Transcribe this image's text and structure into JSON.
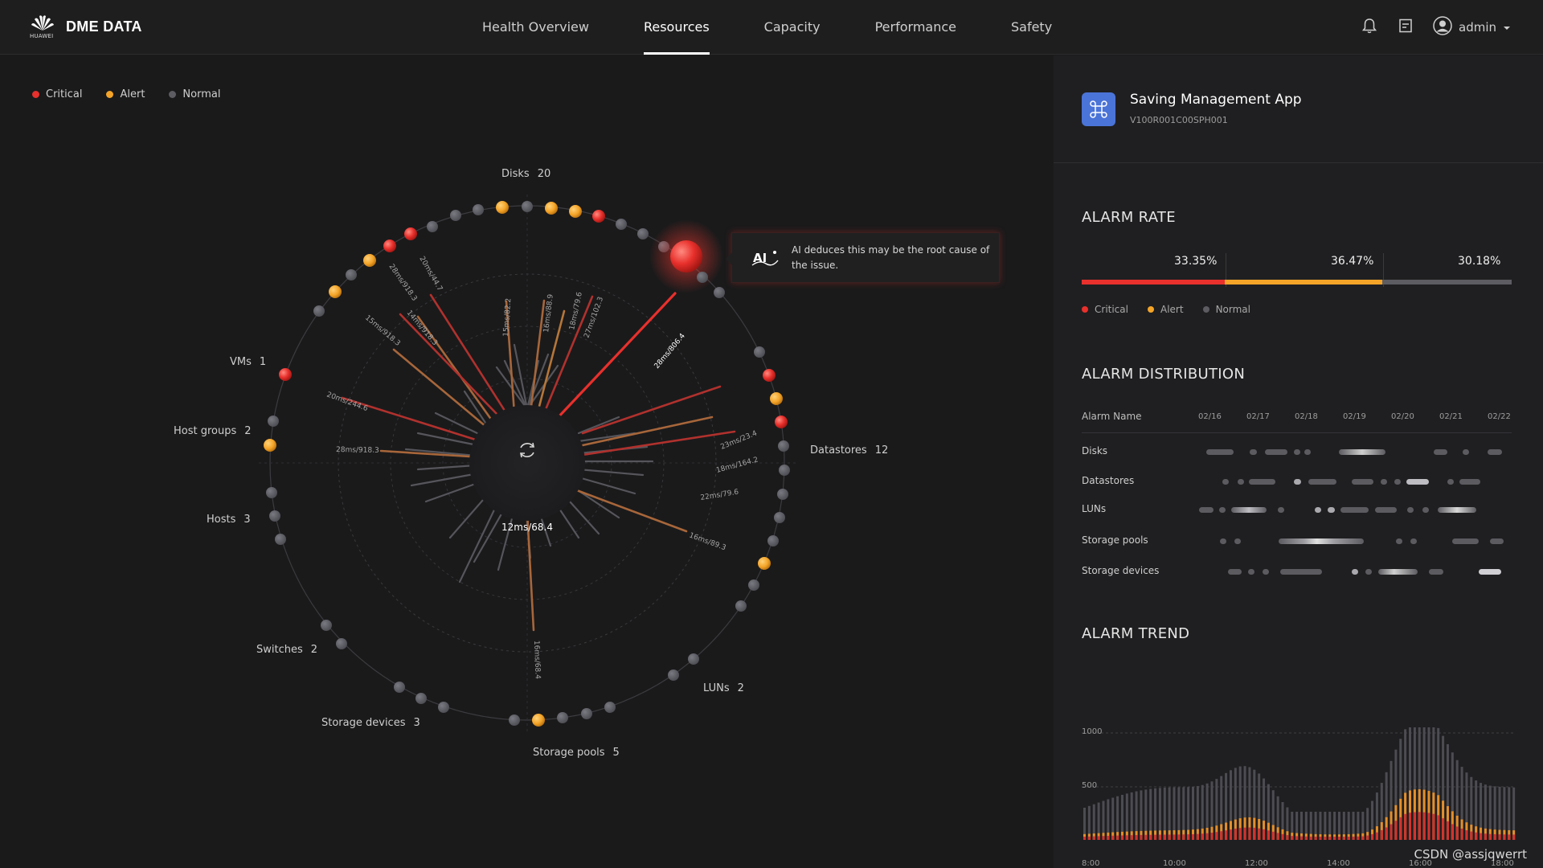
{
  "app": {
    "brand": "DME DATA",
    "logo_sub": "HUAWEI"
  },
  "nav": {
    "tabs": [
      {
        "label": "Health Overview",
        "active": false
      },
      {
        "label": "Resources",
        "active": true
      },
      {
        "label": "Capacity",
        "active": false
      },
      {
        "label": "Performance",
        "active": false
      },
      {
        "label": "Safety",
        "active": false
      }
    ]
  },
  "header": {
    "user": "admin",
    "icons": [
      "bell-icon",
      "document-icon",
      "user-avatar-icon",
      "caret-down-icon"
    ]
  },
  "legend": {
    "critical": "Critical",
    "alert": "Alert",
    "normal": "Normal"
  },
  "colors": {
    "critical": "#e8302c",
    "alert": "#f4a428",
    "normal": "#5c5c62",
    "accent": "#4b74d8"
  },
  "radial": {
    "center_value": "12ms/68.4",
    "categories": [
      {
        "name": "Disks",
        "count": "20"
      },
      {
        "name": "Datastores",
        "count": "12"
      },
      {
        "name": "LUNs",
        "count": "2"
      },
      {
        "name": "Storage pools",
        "count": "5"
      },
      {
        "name": "Storage devices",
        "count": "3"
      },
      {
        "name": "Switches",
        "count": "2"
      },
      {
        "name": "Hosts",
        "count": "3"
      },
      {
        "name": "Host groups",
        "count": "2"
      },
      {
        "name": "VMs",
        "count": "1"
      }
    ],
    "spoke_labels": [
      "15ms/82.2",
      "16ms/88.9",
      "18ms/79.6",
      "27ms/102.3",
      "28ms/806.4",
      "23ms/23.4",
      "18ms/164.2",
      "22ms/79.6",
      "16ms/89.3",
      "16ms/68.4",
      "28ms/918.3",
      "20ms/244.6",
      "15ms/918.3",
      "14ms/918.3",
      "28ms/918.3",
      "20ms/44.7"
    ]
  },
  "tooltip": {
    "text": "AI deduces this may be the root cause of the issue."
  },
  "side": {
    "app_title": "Saving Management App",
    "app_version": "V100R001C00SPH001",
    "alarm_rate": {
      "title": "ALARM RATE",
      "critical_pct": "33.35%",
      "alert_pct": "36.47%",
      "normal_pct": "30.18%",
      "critical_value": 33.35,
      "alert_value": 36.47,
      "normal_value": 30.18
    },
    "alarm_distribution": {
      "title": "ALARM DISTRIBUTION",
      "header": "Alarm Name",
      "dates": [
        "02/16",
        "02/17",
        "02/18",
        "02/19",
        "02/20",
        "02/21",
        "02/22"
      ],
      "rows": [
        "Disks",
        "Datastores",
        "LUNs",
        "Storage pools",
        "Storage devices"
      ]
    },
    "alarm_trend": {
      "title": "ALARM TREND",
      "y_ticks": [
        "1000",
        "500"
      ],
      "x_ticks": [
        "8:00",
        "10:00",
        "12:00",
        "14:00",
        "16:00",
        "18:00"
      ]
    }
  },
  "credit": "CSDN @assjqwerrt"
}
